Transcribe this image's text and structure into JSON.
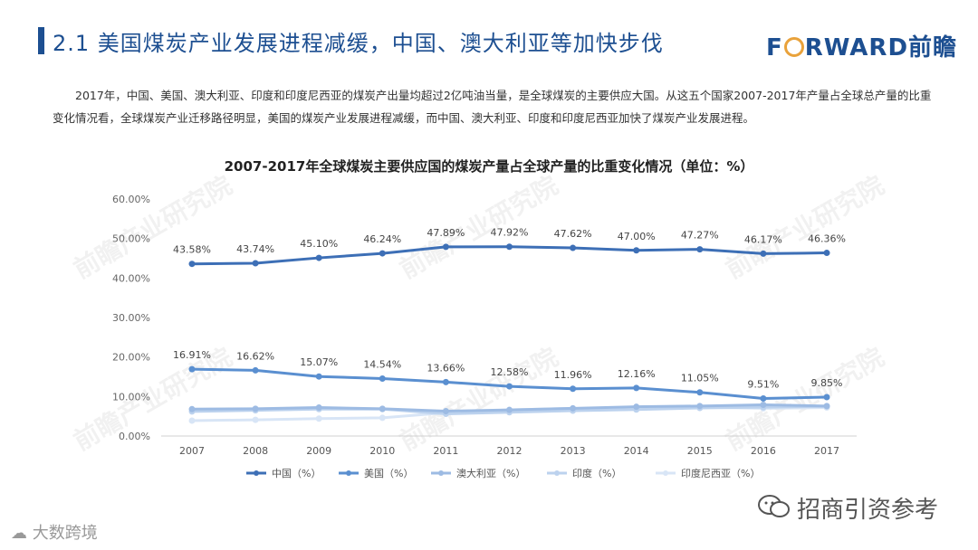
{
  "header": {
    "title": "2.1 美国煤炭产业发展进程减缓，中国、澳大利亚等加快步伐",
    "logo_prefix": "F",
    "logo_suffix": "RWARD前瞻",
    "brand_color": "#1d4f91"
  },
  "intro_text": "2017年，中国、美国、澳大利亚、印度和印度尼西亚的煤炭产出量均超过2亿吨油当量，是全球煤炭的主要供应大国。从这五个国家2007-2017年产量占全球总产量的比重变化情况看，全球煤炭产业迁移路径明显，美国的煤炭产业发展进程减缓，而中国、澳大利亚、印度和印度尼西亚加快了煤炭产业发展进程。",
  "watermark_text": "前瞻产业研究院",
  "footer": {
    "left_text": "大数跨境",
    "right_text": "招商引资参考",
    "left_icon": "cloud-logo-icon",
    "right_icon": "wechat-icon"
  },
  "chart_data": {
    "type": "line",
    "title": "2007-2017年全球煤炭主要供应国的煤炭产量占全球产量的比重变化情况（单位：%）",
    "categories": [
      "2007",
      "2008",
      "2009",
      "2010",
      "2011",
      "2012",
      "2013",
      "2014",
      "2015",
      "2016",
      "2017"
    ],
    "ylim": [
      0,
      60
    ],
    "yticks": [
      "0.00%",
      "10.00%",
      "20.00%",
      "30.00%",
      "40.00%",
      "50.00%",
      "60.00%"
    ],
    "legend_position": "bottom",
    "series": [
      {
        "name": "中国（%）",
        "color": "#3d6fb6",
        "values": [
          43.58,
          43.74,
          45.1,
          46.24,
          47.89,
          47.92,
          47.62,
          47.0,
          47.27,
          46.17,
          46.36
        ],
        "labels": [
          "43.58%",
          "43.74%",
          "45.10%",
          "46.24%",
          "47.89%",
          "47.92%",
          "47.62%",
          "47.00%",
          "47.27%",
          "46.17%",
          "46.36%"
        ]
      },
      {
        "name": "美国（%）",
        "color": "#5a8fd0",
        "values": [
          16.91,
          16.62,
          15.07,
          14.54,
          13.66,
          12.58,
          11.96,
          12.16,
          11.05,
          9.51,
          9.85
        ],
        "labels": [
          "16.91%",
          "16.62%",
          "15.07%",
          "14.54%",
          "13.66%",
          "12.58%",
          "11.96%",
          "12.16%",
          "11.05%",
          "9.51%",
          "9.85%"
        ]
      },
      {
        "name": "澳大利亚（%）",
        "color": "#9dbbe3",
        "values": [
          6.8,
          6.9,
          7.2,
          6.9,
          6.3,
          6.6,
          7.0,
          7.4,
          7.6,
          7.9,
          7.6
        ],
        "labels": []
      },
      {
        "name": "印度（%）",
        "color": "#bcd2ee",
        "values": [
          6.2,
          6.5,
          6.8,
          6.8,
          5.6,
          6.0,
          6.4,
          6.7,
          7.1,
          7.3,
          7.5
        ],
        "labels": []
      },
      {
        "name": "印度尼西亚（%）",
        "color": "#d8e5f6",
        "values": [
          3.9,
          4.1,
          4.4,
          4.6,
          5.9,
          6.6,
          7.0,
          6.9,
          7.3,
          7.0,
          7.2
        ],
        "labels": []
      }
    ]
  }
}
